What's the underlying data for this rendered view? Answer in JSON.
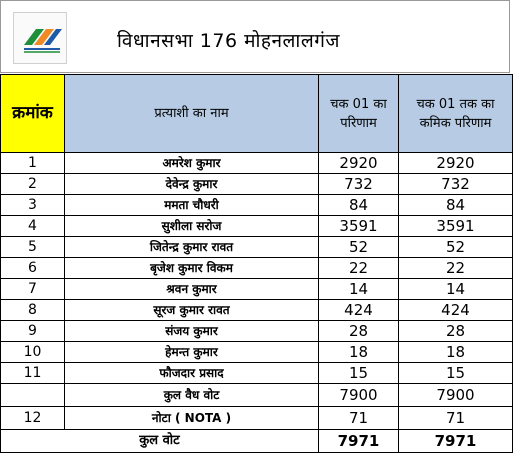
{
  "header": {
    "title": "विधानसभा 176 मोहनलालगंज"
  },
  "table": {
    "columns": [
      "क्रमांक",
      "प्रत्याशी का नाम",
      "चक 01 का परिणाम",
      "चक 01 तक का कमिक परिणाम"
    ],
    "rows": [
      {
        "sno": "1",
        "name": "अमरेश कुमार",
        "round": "2920",
        "cumulative": "2920"
      },
      {
        "sno": "2",
        "name": "देवेन्द्र कुमार",
        "round": "732",
        "cumulative": "732"
      },
      {
        "sno": "3",
        "name": "ममता चौधरी",
        "round": "84",
        "cumulative": "84"
      },
      {
        "sno": "4",
        "name": "सुशीला सरोज",
        "round": "3591",
        "cumulative": "3591"
      },
      {
        "sno": "5",
        "name": "जितेन्द्र कुमार रावत",
        "round": "52",
        "cumulative": "52"
      },
      {
        "sno": "6",
        "name": "बृजेश कुमार विकम",
        "round": "22",
        "cumulative": "22"
      },
      {
        "sno": "7",
        "name": "श्रवन कुमार",
        "round": "14",
        "cumulative": "14"
      },
      {
        "sno": "8",
        "name": "सूरज कुमार रावत",
        "round": "424",
        "cumulative": "424"
      },
      {
        "sno": "9",
        "name": "संजय कुमार",
        "round": "28",
        "cumulative": "28"
      },
      {
        "sno": "10",
        "name": "हेमन्त कुमार",
        "round": "18",
        "cumulative": "18"
      },
      {
        "sno": "11",
        "name": "फौजदार प्रसाद",
        "round": "15",
        "cumulative": "15"
      },
      {
        "sno": "",
        "name": "कुल वैध वोट",
        "round": "7900",
        "cumulative": "7900"
      },
      {
        "sno": "12",
        "name": "नोटा ( NOTA )",
        "round": "71",
        "cumulative": "71"
      }
    ],
    "total": {
      "label": "कुल वोट",
      "round": "7971",
      "cumulative": "7971"
    }
  },
  "colors": {
    "serial_header_bg": "#ffff00",
    "header_bg": "#b7cce4",
    "logo_green": "#1e8f3a",
    "logo_orange": "#f08a24",
    "logo_blue": "#1e5aa8"
  },
  "icons": {
    "logo": "election-commission-logo-icon"
  }
}
